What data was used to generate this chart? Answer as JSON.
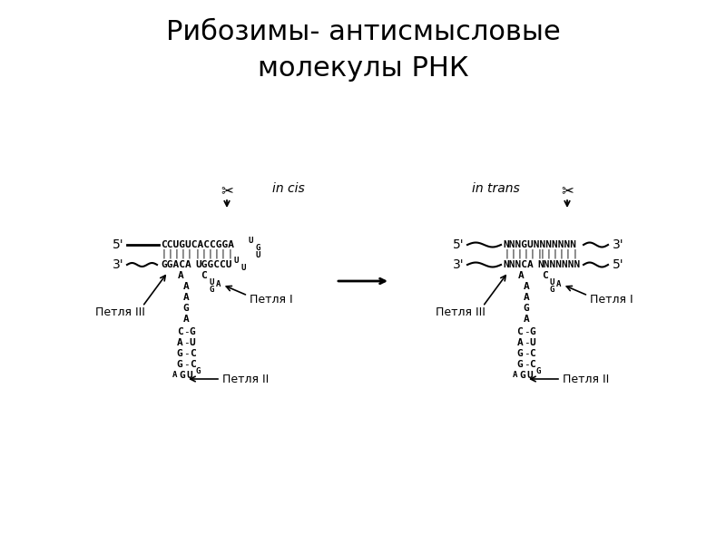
{
  "title_line1": "Рибозимы- антисмысловые",
  "title_line2": "молекулы РНК",
  "title_fontsize": 22,
  "title_fontweight": "normal",
  "bg_color": "#ffffff",
  "text_color": "#000000",
  "fig_width": 8.0,
  "fig_height": 6.0,
  "label_in_cis": "in cis",
  "label_in_trans": "in trans",
  "loop1": "Петля I",
  "loop2": "Петля II",
  "loop3": "Петля III"
}
